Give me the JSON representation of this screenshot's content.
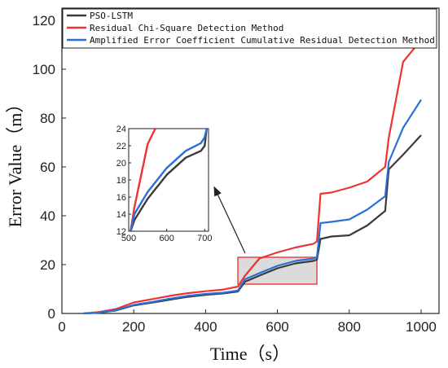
{
  "chart_data": {
    "type": "line",
    "xlabel": "Time（s）",
    "ylabel": "Error Value（m）",
    "xlim": [
      0,
      1050
    ],
    "ylim": [
      0,
      125
    ],
    "xticks": [
      0,
      200,
      400,
      600,
      800,
      1000
    ],
    "yticks": [
      0,
      20,
      40,
      60,
      80,
      100,
      120
    ],
    "legend_position": "top",
    "series": [
      {
        "name": "PSO-LSTM",
        "color": "#3a3a3a",
        "x": [
          60,
          100,
          150,
          200,
          250,
          300,
          350,
          400,
          450,
          490,
          510,
          550,
          600,
          650,
          700,
          710,
          720,
          750,
          800,
          850,
          900,
          910,
          950,
          1000
        ],
        "y": [
          0,
          0.3,
          1.2,
          3.3,
          4.4,
          5.6,
          6.8,
          7.6,
          8.2,
          9.0,
          13.0,
          15.5,
          18.5,
          20.5,
          21.5,
          22.0,
          30.5,
          31.5,
          32.0,
          36.0,
          42.0,
          59.0,
          65.0,
          73.0
        ]
      },
      {
        "name": "Residual Chi-Square Detection Method",
        "color": "#ee3333",
        "x": [
          60,
          100,
          150,
          200,
          250,
          300,
          350,
          400,
          450,
          490,
          510,
          550,
          600,
          650,
          700,
          710,
          720,
          750,
          800,
          850,
          900,
          910,
          950,
          1000
        ],
        "y": [
          0,
          0.5,
          1.8,
          4.5,
          5.8,
          7.2,
          8.3,
          9.1,
          9.8,
          11.0,
          15.5,
          22.5,
          25.0,
          27.0,
          28.5,
          29.5,
          49.0,
          49.5,
          51.5,
          54.0,
          60.0,
          72.0,
          103.0,
          112.0
        ]
      },
      {
        "name": "Amplified Error Coefficient Cumulative Residual Detection Method",
        "color": "#2a6fd6",
        "x": [
          60,
          100,
          150,
          200,
          250,
          300,
          350,
          400,
          450,
          490,
          510,
          550,
          600,
          650,
          700,
          710,
          720,
          750,
          800,
          850,
          900,
          910,
          950,
          1000
        ],
        "y": [
          0,
          0.3,
          1.3,
          3.5,
          4.7,
          6.0,
          7.2,
          8.0,
          8.5,
          9.4,
          14.0,
          16.5,
          19.5,
          21.5,
          22.5,
          23.0,
          37.0,
          37.5,
          38.5,
          42.5,
          48.0,
          62.0,
          76.0,
          87.5
        ]
      }
    ],
    "highlight_region": {
      "x": [
        490,
        710
      ],
      "y": [
        12,
        23
      ]
    },
    "inset": {
      "xlim": [
        500,
        710
      ],
      "ylim": [
        12,
        24
      ],
      "xticks": [
        500,
        600,
        700
      ],
      "yticks": [
        12,
        14,
        16,
        18,
        20,
        22,
        24
      ],
      "series": [
        {
          "name": "PSO-LSTM",
          "color": "#3a3a3a",
          "x": [
            505,
            515,
            550,
            600,
            650,
            690,
            700,
            705
          ],
          "y": [
            12.0,
            13.3,
            15.8,
            18.6,
            20.6,
            21.4,
            22.0,
            24.0
          ]
        },
        {
          "name": "Residual Chi-Square Detection Method",
          "color": "#ee3333",
          "x": [
            505,
            515,
            550,
            570
          ],
          "y": [
            12.0,
            14.8,
            22.2,
            24.0
          ]
        },
        {
          "name": "Amplified Error Coefficient Cumulative Residual Detection Method",
          "color": "#2a6fd6",
          "x": [
            505,
            515,
            550,
            600,
            650,
            690,
            700,
            705
          ],
          "y": [
            12.0,
            14.0,
            16.6,
            19.4,
            21.4,
            22.3,
            23.0,
            24.0
          ]
        }
      ]
    }
  }
}
